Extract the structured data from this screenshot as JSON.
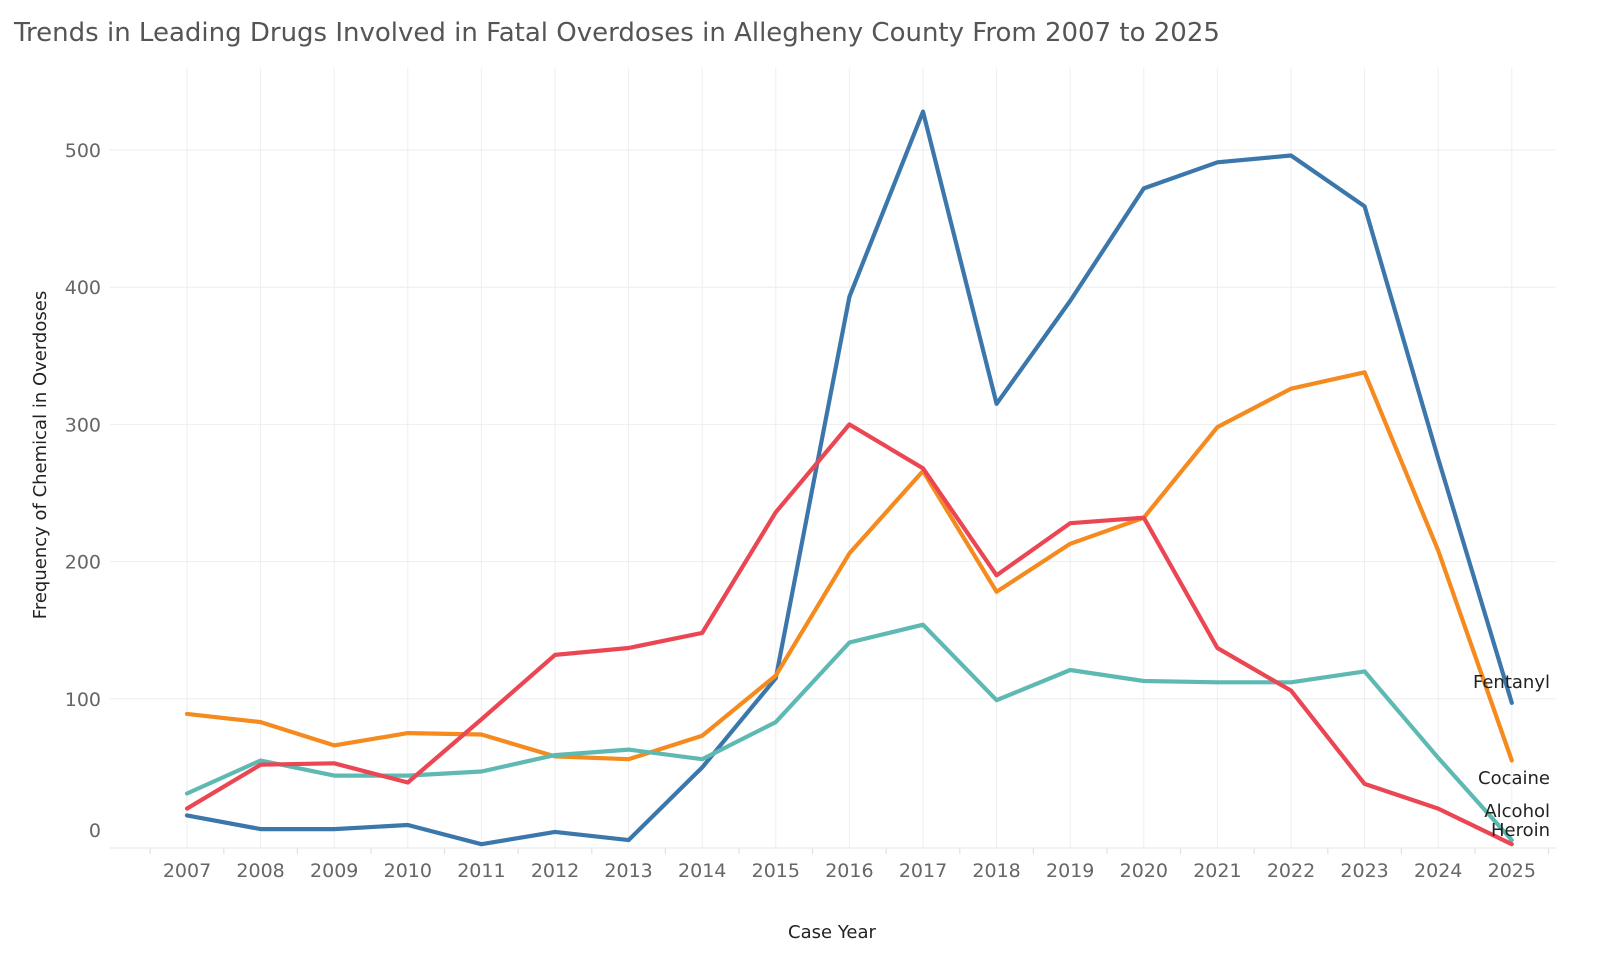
{
  "chart_data": {
    "type": "line",
    "title": "Trends in Leading Drugs Involved in Fatal Overdoses in Allegheny County From 2007 to 2025",
    "xlabel": "Case Year",
    "ylabel": "Frequency of Chemical in Overdoses",
    "x": [
      2007,
      2008,
      2009,
      2010,
      2011,
      2012,
      2013,
      2014,
      2015,
      2016,
      2017,
      2018,
      2019,
      2020,
      2021,
      2022,
      2023,
      2024,
      2025
    ],
    "yticks": [
      0,
      100,
      200,
      300,
      400,
      500
    ],
    "ylim": [
      -10,
      560
    ],
    "grid": true,
    "legend": "direct labels at line ends",
    "series": [
      {
        "name": "Fentanyl",
        "color": "#3C77AC",
        "values": [
          15,
          5,
          5,
          8,
          -6,
          3,
          -3,
          50,
          115,
          393,
          528,
          315,
          390,
          472,
          491,
          496,
          459,
          275,
          97
        ]
      },
      {
        "name": "Cocaine",
        "color": "#F58B1F",
        "values": [
          89,
          83,
          66,
          75,
          74,
          58,
          56,
          73,
          117,
          206,
          266,
          178,
          213,
          232,
          298,
          326,
          338,
          208,
          55
        ]
      },
      {
        "name": "Alcohol",
        "color": "#5EB9B3",
        "values": [
          31,
          55,
          44,
          44,
          47,
          59,
          63,
          56,
          83,
          141,
          154,
          99,
          121,
          113,
          112,
          112,
          120,
          57,
          -3
        ]
      },
      {
        "name": "Heroin",
        "color": "#EB4653",
        "values": [
          20,
          52,
          53,
          39,
          85,
          132,
          137,
          148,
          236,
          300,
          268,
          190,
          228,
          232,
          137,
          106,
          38,
          20,
          -6
        ]
      }
    ]
  }
}
